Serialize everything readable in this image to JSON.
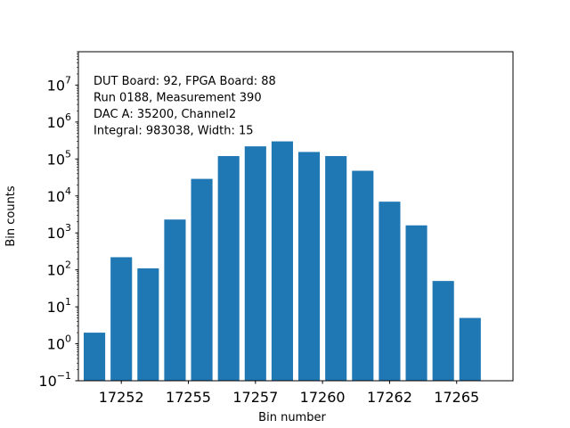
{
  "chart_data": {
    "type": "bar",
    "xlabel": "Bin number",
    "ylabel": "Bin counts",
    "yscale": "log",
    "ylim": [
      0.1,
      80000000
    ],
    "xlim": [
      17250.4,
      17266.6
    ],
    "bar_color": "#1f77b4",
    "grid": false,
    "legend": "none",
    "x": [
      17251,
      17252,
      17253,
      17254,
      17255,
      17256,
      17257,
      17258,
      17259,
      17260,
      17261,
      17262,
      17263,
      17264,
      17265
    ],
    "values": [
      2,
      220,
      110,
      2300,
      29000,
      120000,
      220000,
      300000,
      155000,
      120000,
      48000,
      7000,
      1600,
      50,
      5
    ],
    "x_ticks": [
      {
        "value": 17252,
        "label": "17252"
      },
      {
        "value": 17254.5,
        "label": "17255"
      },
      {
        "value": 17257,
        "label": "17257"
      },
      {
        "value": 17259.5,
        "label": "17260"
      },
      {
        "value": 17262,
        "label": "17262"
      },
      {
        "value": 17264.5,
        "label": "17265"
      }
    ],
    "y_ticks": [
      {
        "exp": -1,
        "base": "10",
        "sup": "−1"
      },
      {
        "exp": 0,
        "base": "10",
        "sup": "0"
      },
      {
        "exp": 1,
        "base": "10",
        "sup": "1"
      },
      {
        "exp": 2,
        "base": "10",
        "sup": "2"
      },
      {
        "exp": 3,
        "base": "10",
        "sup": "3"
      },
      {
        "exp": 4,
        "base": "10",
        "sup": "4"
      },
      {
        "exp": 5,
        "base": "10",
        "sup": "5"
      },
      {
        "exp": 6,
        "base": "10",
        "sup": "6"
      },
      {
        "exp": 7,
        "base": "10",
        "sup": "7"
      }
    ],
    "annotations": [
      "DUT Board: 92, FPGA Board: 88",
      "Run 0188, Measurement 390",
      "DAC A: 35200, Channel2",
      "Integral: 983038, Width: 15"
    ]
  }
}
